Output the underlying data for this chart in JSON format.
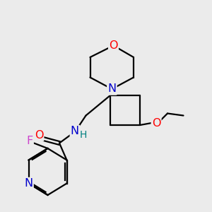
{
  "background_color": "#ebebeb",
  "atom_colors": {
    "O": "#ff0000",
    "N": "#0000cc",
    "F": "#cc44cc",
    "H": "#008080",
    "C": "#000000"
  },
  "font_size": 10.5,
  "linewidth": 1.6
}
